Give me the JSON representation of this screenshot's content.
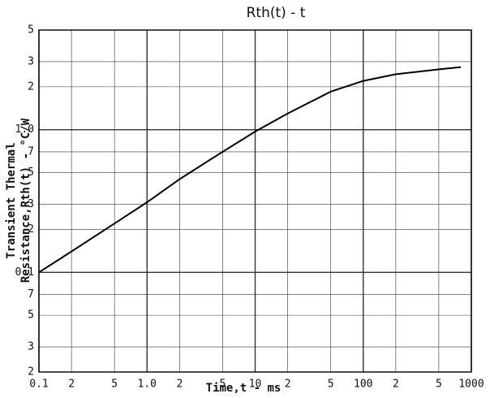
{
  "chart_data": {
    "type": "line",
    "title": "Rth(t)  -  t",
    "x_label": "Time,t - ms",
    "y_label": [
      "Transient Thermal",
      "Resistance,Rth(t) - °C/W"
    ],
    "log_x": true,
    "log_y": true,
    "grid": true,
    "xlim": [
      0.1,
      1000
    ],
    "ylim": [
      0.02,
      5
    ],
    "xticks": [
      0.1,
      {
        "value": 0.2,
        "label": "2"
      },
      {
        "value": 0.5,
        "label": "5"
      },
      {
        "value": 1,
        "label": "1.0"
      },
      {
        "value": 2,
        "label": "2"
      },
      {
        "value": 5,
        "label": "5"
      },
      10,
      {
        "value": 20,
        "label": "2"
      },
      {
        "value": 50,
        "label": "5"
      },
      100,
      {
        "value": 200,
        "label": "2"
      },
      {
        "value": 500,
        "label": "5"
      },
      1000
    ],
    "yticks": [
      5,
      3,
      2,
      {
        "value": 1,
        "label": "1.0"
      },
      {
        "value": 0.7,
        "label": "7"
      },
      {
        "value": 0.5,
        "label": "5"
      },
      {
        "value": 0.3,
        "label": "3"
      },
      {
        "value": 0.2,
        "label": "2"
      },
      0.1,
      {
        "value": 0.07,
        "label": "7"
      },
      {
        "value": 0.05,
        "label": "5"
      },
      {
        "value": 0.03,
        "label": "3"
      },
      {
        "value": 0.02,
        "label": "2"
      }
    ],
    "series": [
      {
        "color": "#000000",
        "x": [
          0.1,
          0.2,
          0.5,
          1,
          2,
          5,
          10,
          20,
          50,
          100,
          200,
          500,
          800
        ],
        "values": [
          0.1,
          0.14,
          0.22,
          0.31,
          0.45,
          0.7,
          0.97,
          1.3,
          1.85,
          2.2,
          2.45,
          2.65,
          2.75
        ]
      }
    ]
  }
}
